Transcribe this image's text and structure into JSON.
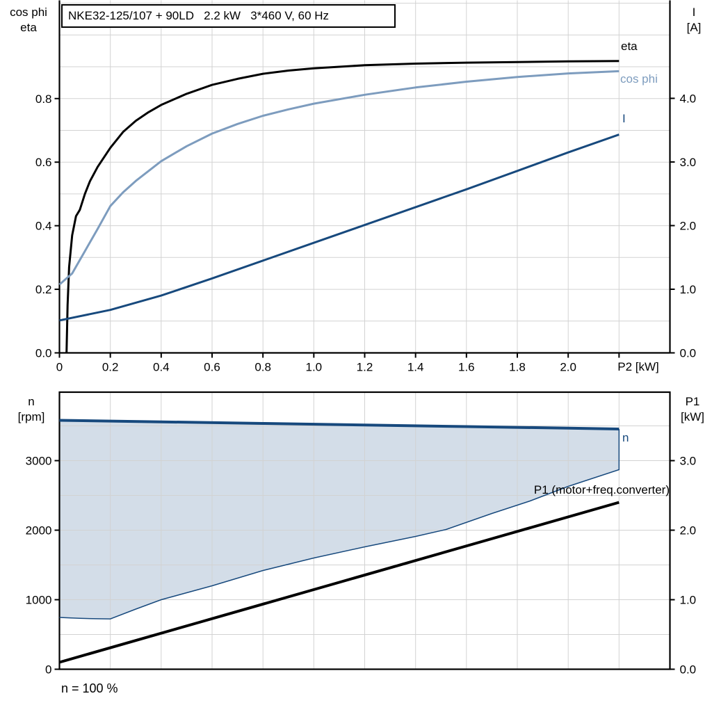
{
  "colors": {
    "black": "#000000",
    "steel_blue": "#7d9cbe",
    "dark_blue": "#17497d",
    "band_fill": "#d3dde8",
    "grid": "#d2d2d2",
    "background": "#ffffff"
  },
  "axis_corners": {
    "top_left": [
      "cos phi",
      "eta"
    ],
    "top_right": [
      "I",
      "[A]"
    ],
    "bottom_left": [
      "n",
      "[rpm]"
    ],
    "bottom_right": [
      "P1",
      "[kW]"
    ]
  },
  "chart_data": [
    {
      "type": "line",
      "title": "NKE32-125/107 + 90LD   2.2 kW   3*460 V, 60 Hz",
      "x_axis": {
        "label": "P2 [kW]",
        "min": 0,
        "max": 2.4,
        "grid_step": 0.2,
        "ticks": [
          {
            "v": 0,
            "label": "0"
          },
          {
            "v": 0.2,
            "label": "0.2"
          },
          {
            "v": 0.4,
            "label": "0.4"
          },
          {
            "v": 0.6,
            "label": "0.6"
          },
          {
            "v": 0.8,
            "label": "0.8"
          },
          {
            "v": 1.0,
            "label": "1.0"
          },
          {
            "v": 1.2,
            "label": "1.2"
          },
          {
            "v": 1.4,
            "label": "1.4"
          },
          {
            "v": 1.6,
            "label": "1.6"
          },
          {
            "v": 1.8,
            "label": "1.8"
          },
          {
            "v": 2.0,
            "label": "2.0"
          },
          {
            "v": 2.2,
            "label": ""
          }
        ]
      },
      "left_axis": {
        "label": "cos phi / eta",
        "min": 0,
        "max": 1.109,
        "grid_step": 0.1,
        "ticks": [
          {
            "v": 0.0,
            "label": "0.0"
          },
          {
            "v": 0.2,
            "label": "0.2"
          },
          {
            "v": 0.4,
            "label": "0.4"
          },
          {
            "v": 0.6,
            "label": "0.6"
          },
          {
            "v": 0.8,
            "label": "0.8"
          }
        ]
      },
      "right_axis": {
        "label": "I [A]",
        "min": 0,
        "max": 5.54,
        "ticks": [
          {
            "v": 0.0,
            "label": "0.0"
          },
          {
            "v": 1.0,
            "label": "1.0"
          },
          {
            "v": 2.0,
            "label": "2.0"
          },
          {
            "v": 3.0,
            "label": "3.0"
          },
          {
            "v": 4.0,
            "label": "4.0"
          }
        ]
      },
      "series": [
        {
          "name": "eta",
          "axis": "left",
          "color_key": "black",
          "width": 3,
          "label": {
            "text": "eta",
            "x": 893,
            "y": 57,
            "align": "left"
          },
          "points": [
            [
              0.028,
              0
            ],
            [
              0.032,
              0.15
            ],
            [
              0.038,
              0.27
            ],
            [
              0.05,
              0.37
            ],
            [
              0.065,
              0.43
            ],
            [
              0.08,
              0.45
            ],
            [
              0.1,
              0.5
            ],
            [
              0.12,
              0.54
            ],
            [
              0.15,
              0.585
            ],
            [
              0.2,
              0.645
            ],
            [
              0.25,
              0.695
            ],
            [
              0.3,
              0.73
            ],
            [
              0.35,
              0.757
            ],
            [
              0.4,
              0.78
            ],
            [
              0.5,
              0.815
            ],
            [
              0.6,
              0.843
            ],
            [
              0.7,
              0.862
            ],
            [
              0.8,
              0.878
            ],
            [
              0.9,
              0.888
            ],
            [
              1.0,
              0.895
            ],
            [
              1.2,
              0.905
            ],
            [
              1.4,
              0.91
            ],
            [
              1.6,
              0.913
            ],
            [
              1.8,
              0.915
            ],
            [
              2.0,
              0.917
            ],
            [
              2.2,
              0.918
            ]
          ]
        },
        {
          "name": "cos phi",
          "axis": "left",
          "color_key": "steel_blue",
          "width": 3,
          "label": {
            "text": "cos phi",
            "x": 892,
            "y": 104,
            "align": "left"
          },
          "points": [
            [
              0,
              0.215
            ],
            [
              0.05,
              0.25
            ],
            [
              0.1,
              0.32
            ],
            [
              0.15,
              0.39
            ],
            [
              0.2,
              0.462
            ],
            [
              0.25,
              0.505
            ],
            [
              0.3,
              0.541
            ],
            [
              0.4,
              0.603
            ],
            [
              0.5,
              0.65
            ],
            [
              0.6,
              0.69
            ],
            [
              0.7,
              0.72
            ],
            [
              0.8,
              0.746
            ],
            [
              0.9,
              0.766
            ],
            [
              1.0,
              0.784
            ],
            [
              1.2,
              0.812
            ],
            [
              1.4,
              0.835
            ],
            [
              1.6,
              0.853
            ],
            [
              1.8,
              0.868
            ],
            [
              2.0,
              0.879
            ],
            [
              2.2,
              0.886
            ]
          ]
        },
        {
          "name": "I",
          "axis": "right",
          "color_key": "dark_blue",
          "width": 3,
          "label": {
            "text": "I",
            "x": 895,
            "y": 161,
            "align": "left"
          },
          "points": [
            [
              0,
              0.51
            ],
            [
              0.2,
              0.675
            ],
            [
              0.4,
              0.9
            ],
            [
              0.6,
              1.17
            ],
            [
              0.8,
              1.45
            ],
            [
              1.0,
              1.73
            ],
            [
              1.2,
              2.01
            ],
            [
              1.4,
              2.29
            ],
            [
              1.6,
              2.57
            ],
            [
              1.8,
              2.86
            ],
            [
              2.0,
              3.15
            ],
            [
              2.2,
              3.43
            ]
          ]
        }
      ]
    },
    {
      "type": "line",
      "footnote": "n = 100 %",
      "x_axis": {
        "label": "",
        "min": 0,
        "max": 2.4,
        "grid_step": 0.2,
        "ticks": []
      },
      "left_axis": {
        "label": "n [rpm]",
        "min": 0,
        "max": 3985,
        "grid_step": 500,
        "ticks": [
          {
            "v": 0,
            "label": "0"
          },
          {
            "v": 1000,
            "label": "1000"
          },
          {
            "v": 2000,
            "label": "2000"
          },
          {
            "v": 3000,
            "label": "3000"
          }
        ]
      },
      "right_axis": {
        "label": "P1 [kW]",
        "min": 0,
        "max": 3.985,
        "ticks": [
          {
            "v": 0.0,
            "label": "0.0"
          },
          {
            "v": 1.0,
            "label": "1.0"
          },
          {
            "v": 2.0,
            "label": "2.0"
          },
          {
            "v": 3.0,
            "label": "3.0"
          }
        ]
      },
      "band": {
        "upper": "n",
        "lower": "n min",
        "color_key": "band_fill"
      },
      "series": [
        {
          "name": "n",
          "axis": "left",
          "color_key": "dark_blue",
          "width": 4,
          "label": {
            "text": "n",
            "x": 895,
            "y": 620,
            "align": "left"
          },
          "points": [
            [
              0,
              3580
            ],
            [
              0.4,
              3558
            ],
            [
              0.8,
              3535
            ],
            [
              1.2,
              3512
            ],
            [
              1.6,
              3490
            ],
            [
              2.0,
              3467
            ],
            [
              2.2,
              3455
            ]
          ]
        },
        {
          "name": "n min",
          "axis": "left",
          "color_key": "dark_blue",
          "width": 1.5,
          "label": null,
          "points": [
            [
              0,
              745
            ],
            [
              0.08,
              732
            ],
            [
              0.15,
              726
            ],
            [
              0.2,
              724
            ],
            [
              0.3,
              865
            ],
            [
              0.4,
              1000
            ],
            [
              0.6,
              1200
            ],
            [
              0.8,
              1420
            ],
            [
              1.0,
              1600
            ],
            [
              1.2,
              1760
            ],
            [
              1.4,
              1910
            ],
            [
              1.52,
              2010
            ],
            [
              1.7,
              2240
            ],
            [
              1.85,
              2420
            ],
            [
              2.0,
              2630
            ],
            [
              2.2,
              2870
            ]
          ]
        },
        {
          "name": "P1",
          "axis": "right",
          "color_key": "black",
          "width": 4,
          "label": {
            "text": "P1 (motor+freq.converter)",
            "x": 963,
            "y": 695,
            "align": "right"
          },
          "points": [
            [
              0,
              0.1
            ],
            [
              0.55,
              0.675
            ],
            [
              1.1,
              1.25
            ],
            [
              1.65,
              1.825
            ],
            [
              2.2,
              2.4
            ]
          ]
        }
      ]
    }
  ]
}
